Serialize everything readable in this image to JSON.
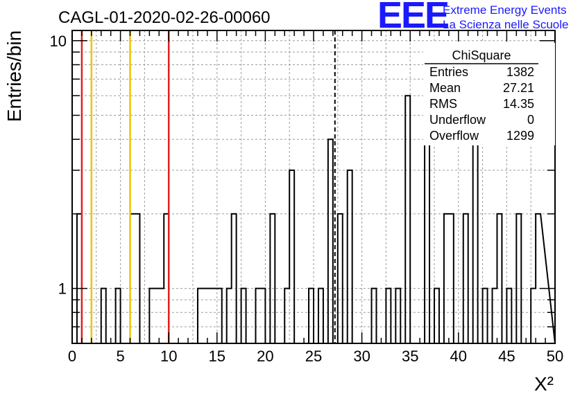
{
  "header": {
    "title": "CAGL-01-2020-02-26-00060",
    "logo": {
      "mark": "EEE",
      "line1": "Extreme Energy Events",
      "line2": "La Scienza nelle Scuole",
      "color": "#1a1aff"
    }
  },
  "chart_data": {
    "type": "bar",
    "histogram": true,
    "xlabel": "X²",
    "ylabel": "Entries/bin",
    "xlim": [
      0,
      50
    ],
    "ylim": [
      0.6,
      11
    ],
    "yscale": "log",
    "grid": true,
    "bin_width": 0.5,
    "bin_edges_start": 0,
    "x_ticks": [
      "0",
      "5",
      "10",
      "15",
      "20",
      "25",
      "30",
      "35",
      "40",
      "45",
      "50"
    ],
    "y_ticks": [
      "1",
      "10"
    ],
    "counts": [
      0,
      2,
      0,
      0,
      0,
      0,
      1,
      0,
      0,
      1,
      0,
      0,
      2,
      2,
      0,
      0,
      1,
      1,
      1,
      2,
      0,
      0,
      0,
      0,
      0,
      0,
      1,
      1,
      1,
      1,
      1,
      0,
      1,
      2,
      0,
      1,
      0,
      0,
      1,
      1,
      0,
      2,
      0,
      0,
      1,
      3,
      0,
      0,
      0,
      1,
      0,
      1,
      0,
      4,
      0,
      2,
      0,
      3,
      0,
      0,
      0,
      0,
      1,
      0,
      0,
      1,
      0,
      1,
      0,
      6,
      0,
      0,
      0,
      4,
      0,
      1,
      0,
      2,
      2,
      0,
      0,
      2,
      0,
      4,
      0,
      1,
      0,
      1,
      2,
      0,
      1,
      0,
      2,
      0,
      0,
      1,
      2
    ],
    "vertical_lines": [
      {
        "x": 1,
        "color": "#e0201c",
        "style": "solid"
      },
      {
        "x": 2,
        "color": "#f2c200",
        "style": "solid"
      },
      {
        "x": 6,
        "color": "#f2c200",
        "style": "solid"
      },
      {
        "x": 10,
        "color": "#e0201c",
        "style": "solid"
      },
      {
        "x": 27.21,
        "color": "#000000",
        "style": "dashed"
      }
    ],
    "stats_box": {
      "title": "ChiSquare",
      "rows": [
        {
          "label": "Entries",
          "value": "1382"
        },
        {
          "label": "Mean",
          "value": "27.21"
        },
        {
          "label": "RMS",
          "value": "14.35"
        },
        {
          "label": "Underflow",
          "value": "0"
        },
        {
          "label": "Overflow",
          "value": "1299"
        }
      ]
    }
  }
}
